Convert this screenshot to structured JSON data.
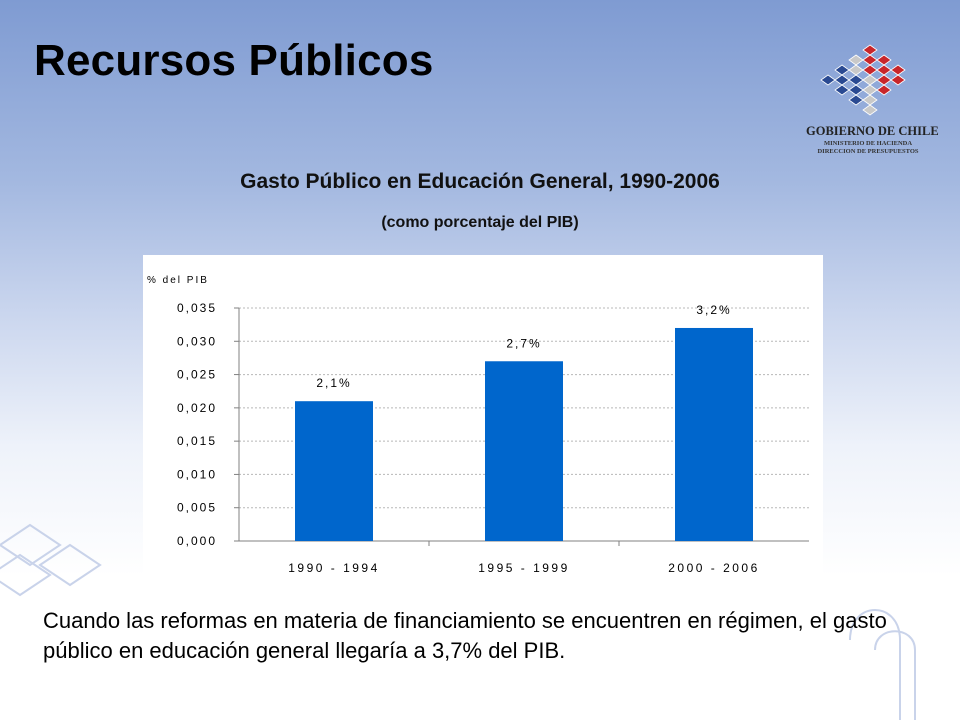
{
  "slide": {
    "title": "Recursos Públicos",
    "caption": "Cuando las reformas en materia de financiamiento se encuentren en régimen, el gasto público en educación general llegaría a 3,7% del PIB."
  },
  "logo": {
    "line1": "GOBIERNO DE CHILE",
    "line2": "MINISTERIO DE HACIENDA",
    "line3": "DIRECCION DE PRESUPUESTOS"
  },
  "chart_data": {
    "type": "bar",
    "title": "Gasto Público en Educación General, 1990-2006",
    "subtitle": "(como porcentaje del PIB)",
    "ylabel": "% del PIB",
    "xlabel": "",
    "categories": [
      "1990 - 1994",
      "1995 - 1999",
      "2000 - 2006"
    ],
    "values": [
      0.021,
      0.027,
      0.032
    ],
    "data_labels": [
      "2,1%",
      "2,7%",
      "3,2%"
    ],
    "ylim": [
      0,
      0.035
    ],
    "yticks": [
      0.0,
      0.005,
      0.01,
      0.015,
      0.02,
      0.025,
      0.03,
      0.035
    ],
    "ytick_labels": [
      "0,000",
      "0,005",
      "0,010",
      "0,015",
      "0,020",
      "0,025",
      "0,030",
      "0,035"
    ],
    "grid": true,
    "bar_color": "#0066cc"
  }
}
